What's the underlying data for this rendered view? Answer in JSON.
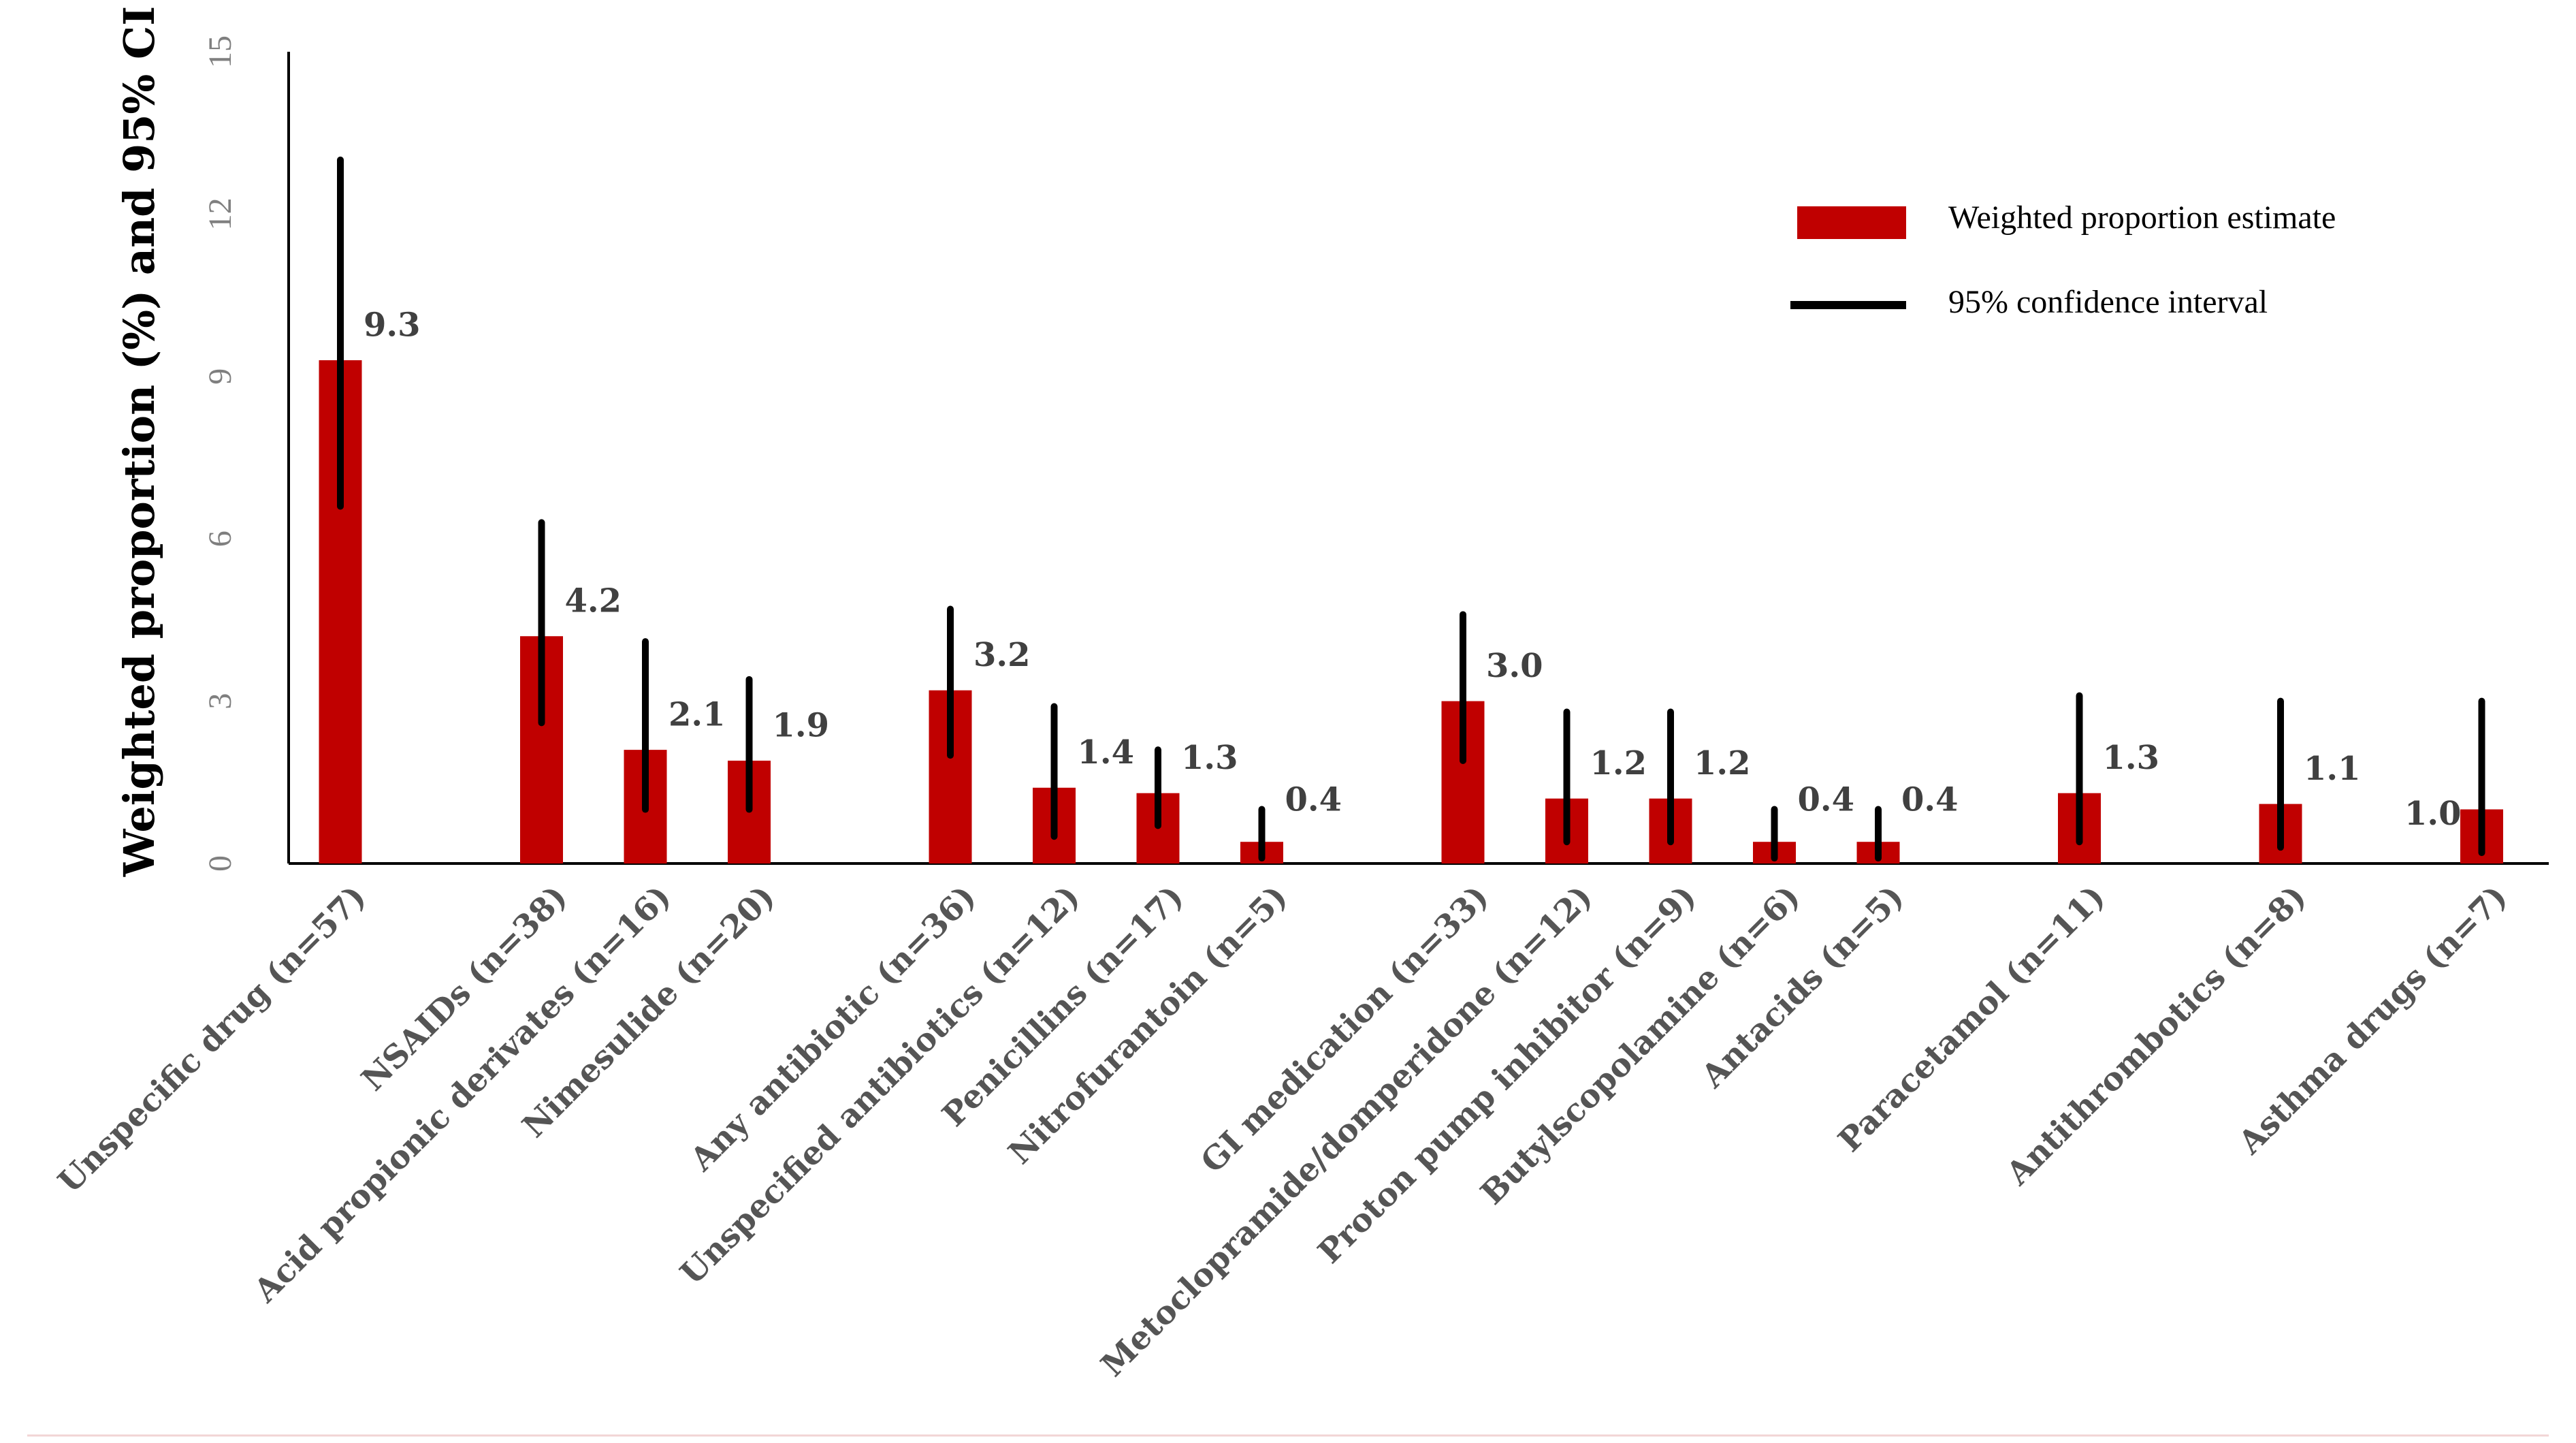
{
  "chart_data": {
    "type": "bar",
    "title": "",
    "xlabel": "",
    "ylabel": "Weighted proportion  (%) and 95% CI",
    "ylim": [
      0,
      15
    ],
    "yticks": [
      "0",
      "3",
      "6",
      "9",
      "12",
      "15"
    ],
    "grid": false,
    "legend_position": "top-right",
    "legend": {
      "bar_label": "Weighted proportion estimate",
      "ci_label": "95% confidence interval"
    },
    "colors": {
      "bar": "#c00000",
      "ci": "#000000"
    },
    "groups": [
      [
        0
      ],
      [
        1,
        2,
        3
      ],
      [
        4,
        5,
        6,
        7
      ],
      [
        8,
        9,
        10,
        11,
        12
      ],
      [
        13
      ],
      [
        14
      ],
      [
        15
      ]
    ],
    "categories": [
      "Unspecific drug (n=57)",
      "NSAIDs (n=38)",
      "Acid propionic derivates (n=16)",
      "Nimesulide (n=20)",
      "Any antibiotic (n=36)",
      "Unspecified antibiotics (n=12)",
      "Penicillins (n=17)",
      "Nitrofurantoin (n=5)",
      "GI medication (n=33)",
      "Metoclopramide/domperidone (n=12)",
      "Proton pump inhibitor (n=9)",
      "Butylscopolamine (n=6)",
      "Antacids (n=5)",
      "Paracetamol (n=11)",
      "Antithrombotics (n=8)",
      "Asthma drugs (n=7)"
    ],
    "values": [
      9.3,
      4.2,
      2.1,
      1.9,
      3.2,
      1.4,
      1.3,
      0.4,
      3.0,
      1.2,
      1.2,
      0.4,
      0.4,
      1.3,
      1.1,
      1.0
    ],
    "value_labels": [
      "9.3",
      "4.2",
      "2.1",
      "1.9",
      "3.2",
      "1.4",
      "1.3",
      "0.4",
      "3.0",
      "1.2",
      "1.2",
      "0.4",
      "0.4",
      "1.3",
      "1.1",
      "1.0"
    ],
    "ci_lower": [
      6.6,
      2.6,
      1.0,
      1.0,
      2.0,
      0.5,
      0.7,
      0.1,
      1.9,
      0.4,
      0.4,
      0.1,
      0.1,
      0.4,
      0.3,
      0.2
    ],
    "ci_upper": [
      13.0,
      6.3,
      4.1,
      3.4,
      4.7,
      2.9,
      2.1,
      1.0,
      4.6,
      2.8,
      2.8,
      1.0,
      1.0,
      3.1,
      3.0,
      3.0
    ]
  }
}
